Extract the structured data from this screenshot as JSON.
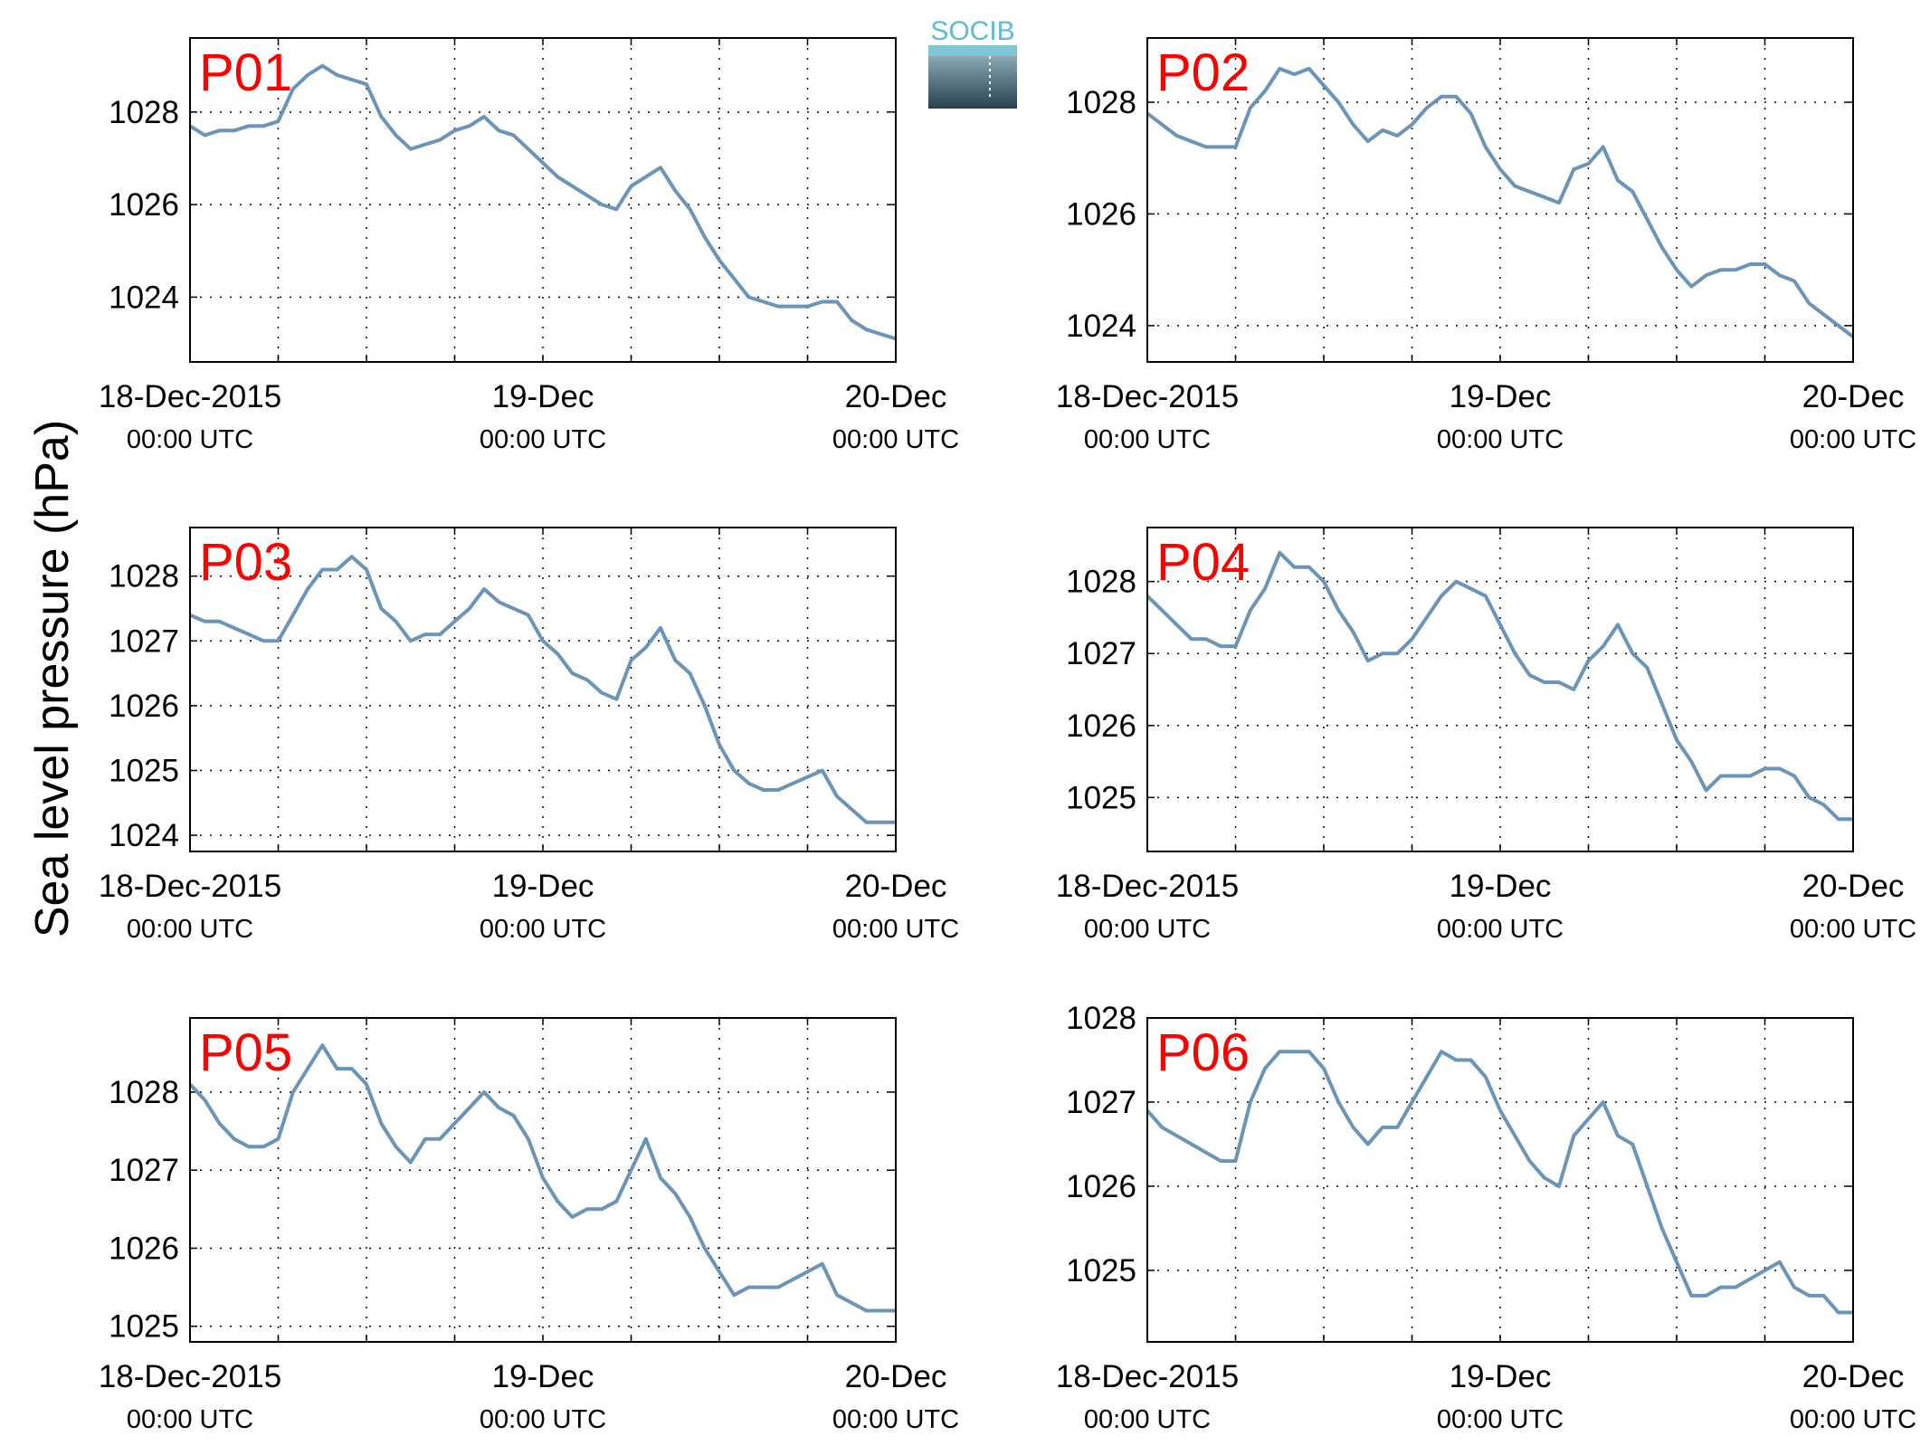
{
  "figure": {
    "ylabel": "Sea level pressure (hPa)",
    "logo_text": "SOCIB",
    "line_color": "#6a94b8",
    "label_color": "#ff0000"
  },
  "chart_data": [
    {
      "type": "line",
      "title": "P01",
      "x_start": "2015-12-18 00:00 UTC",
      "x_end": "2015-12-20 00:00 UTC",
      "x_step_hours": 1,
      "xlim": [
        "2015-12-18 00:00 UTC",
        "2015-12-20 00:00 UTC"
      ],
      "xticks": [
        [
          "18-Dec-2015",
          "00:00 UTC"
        ],
        [
          "19-Dec",
          "00:00 UTC"
        ],
        [
          "20-Dec",
          "00:00 UTC"
        ]
      ],
      "yticks": [
        1024,
        1026,
        1028
      ],
      "ylim": [
        1022.6,
        1029.6
      ],
      "grid": true,
      "series": [
        {
          "values": [
            1027.7,
            1027.5,
            1027.6,
            1027.6,
            1027.7,
            1027.7,
            1027.8,
            1028.5,
            1028.8,
            1029.0,
            1028.8,
            1028.7,
            1028.6,
            1027.9,
            1027.5,
            1027.2,
            1027.3,
            1027.4,
            1027.6,
            1027.7,
            1027.9,
            1027.6,
            1027.5,
            1027.2,
            1026.9,
            1026.6,
            1026.4,
            1026.2,
            1026.0,
            1025.9,
            1026.4,
            1026.6,
            1026.8,
            1026.3,
            1025.9,
            1025.3,
            1024.8,
            1024.4,
            1024.0,
            1023.9,
            1023.8,
            1023.8,
            1023.8,
            1023.9,
            1023.9,
            1023.5,
            1023.3,
            1023.2,
            1023.1
          ]
        }
      ]
    },
    {
      "type": "line",
      "title": "P02",
      "x_start": "2015-12-18 00:00 UTC",
      "x_end": "2015-12-20 00:00 UTC",
      "x_step_hours": 1,
      "xlim": [
        "2015-12-18 00:00 UTC",
        "2015-12-20 00:00 UTC"
      ],
      "xticks": [
        [
          "18-Dec-2015",
          "00:00 UTC"
        ],
        [
          "19-Dec",
          "00:00 UTC"
        ],
        [
          "20-Dec",
          "00:00 UTC"
        ]
      ],
      "yticks": [
        1024,
        1026,
        1028
      ],
      "ylim": [
        1023.35,
        1029.15
      ],
      "grid": true,
      "series": [
        {
          "values": [
            1027.8,
            1027.6,
            1027.4,
            1027.3,
            1027.2,
            1027.2,
            1027.2,
            1027.9,
            1028.2,
            1028.6,
            1028.5,
            1028.6,
            1028.3,
            1028.0,
            1027.6,
            1027.3,
            1027.5,
            1027.4,
            1027.6,
            1027.9,
            1028.1,
            1028.1,
            1027.8,
            1027.2,
            1026.8,
            1026.5,
            1026.4,
            1026.3,
            1026.2,
            1026.8,
            1026.9,
            1027.2,
            1026.6,
            1026.4,
            1025.9,
            1025.4,
            1025.0,
            1024.7,
            1024.9,
            1025.0,
            1025.0,
            1025.1,
            1025.1,
            1024.9,
            1024.8,
            1024.4,
            1024.2,
            1024.0,
            1023.8
          ]
        }
      ]
    },
    {
      "type": "line",
      "title": "P03",
      "x_start": "2015-12-18 00:00 UTC",
      "x_end": "2015-12-20 00:00 UTC",
      "x_step_hours": 1,
      "xlim": [
        "2015-12-18 00:00 UTC",
        "2015-12-20 00:00 UTC"
      ],
      "xticks": [
        [
          "18-Dec-2015",
          "00:00 UTC"
        ],
        [
          "19-Dec",
          "00:00 UTC"
        ],
        [
          "20-Dec",
          "00:00 UTC"
        ]
      ],
      "yticks": [
        1024,
        1025,
        1026,
        1027,
        1028
      ],
      "ylim": [
        1023.75,
        1028.75
      ],
      "grid": true,
      "series": [
        {
          "values": [
            1027.4,
            1027.3,
            1027.3,
            1027.2,
            1027.1,
            1027.0,
            1027.0,
            1027.4,
            1027.8,
            1028.1,
            1028.1,
            1028.3,
            1028.1,
            1027.5,
            1027.3,
            1027.0,
            1027.1,
            1027.1,
            1027.3,
            1027.5,
            1027.8,
            1027.6,
            1027.5,
            1027.4,
            1027.0,
            1026.8,
            1026.5,
            1026.4,
            1026.2,
            1026.1,
            1026.7,
            1026.9,
            1027.2,
            1026.7,
            1026.5,
            1026.0,
            1025.4,
            1025.0,
            1024.8,
            1024.7,
            1024.7,
            1024.8,
            1024.9,
            1025.0,
            1024.6,
            1024.4,
            1024.2,
            1024.2,
            1024.2
          ]
        }
      ]
    },
    {
      "type": "line",
      "title": "P04",
      "x_start": "2015-12-18 00:00 UTC",
      "x_end": "2015-12-20 00:00 UTC",
      "x_step_hours": 1,
      "xlim": [
        "2015-12-18 00:00 UTC",
        "2015-12-20 00:00 UTC"
      ],
      "xticks": [
        [
          "18-Dec-2015",
          "00:00 UTC"
        ],
        [
          "19-Dec",
          "00:00 UTC"
        ],
        [
          "20-Dec",
          "00:00 UTC"
        ]
      ],
      "yticks": [
        1025,
        1026,
        1027,
        1028
      ],
      "ylim": [
        1024.25,
        1028.75
      ],
      "grid": true,
      "series": [
        {
          "values": [
            1027.8,
            1027.6,
            1027.4,
            1027.2,
            1027.2,
            1027.1,
            1027.1,
            1027.6,
            1027.9,
            1028.4,
            1028.2,
            1028.2,
            1028.0,
            1027.6,
            1027.3,
            1026.9,
            1027.0,
            1027.0,
            1027.2,
            1027.5,
            1027.8,
            1028.0,
            1027.9,
            1027.8,
            1027.4,
            1027.0,
            1026.7,
            1026.6,
            1026.6,
            1026.5,
            1026.9,
            1027.1,
            1027.4,
            1027.0,
            1026.8,
            1026.3,
            1025.8,
            1025.5,
            1025.1,
            1025.3,
            1025.3,
            1025.3,
            1025.4,
            1025.4,
            1025.3,
            1025.0,
            1024.9,
            1024.7,
            1024.7
          ]
        }
      ]
    },
    {
      "type": "line",
      "title": "P05",
      "x_start": "2015-12-18 00:00 UTC",
      "x_end": "2015-12-20 00:00 UTC",
      "x_step_hours": 1,
      "xlim": [
        "2015-12-18 00:00 UTC",
        "2015-12-20 00:00 UTC"
      ],
      "xticks": [
        [
          "18-Dec-2015",
          "00:00 UTC"
        ],
        [
          "19-Dec",
          "00:00 UTC"
        ],
        [
          "20-Dec",
          "00:00 UTC"
        ]
      ],
      "yticks": [
        1025,
        1026,
        1027,
        1028
      ],
      "ylim": [
        1024.8,
        1028.95
      ],
      "grid": true,
      "series": [
        {
          "values": [
            1028.1,
            1027.9,
            1027.6,
            1027.4,
            1027.3,
            1027.3,
            1027.4,
            1028.0,
            1028.3,
            1028.6,
            1028.3,
            1028.3,
            1028.1,
            1027.6,
            1027.3,
            1027.1,
            1027.4,
            1027.4,
            1027.6,
            1027.8,
            1028.0,
            1027.8,
            1027.7,
            1027.4,
            1026.9,
            1026.6,
            1026.4,
            1026.5,
            1026.5,
            1026.6,
            1027.0,
            1027.4,
            1026.9,
            1026.7,
            1026.4,
            1026.0,
            1025.7,
            1025.4,
            1025.5,
            1025.5,
            1025.5,
            1025.6,
            1025.7,
            1025.8,
            1025.4,
            1025.3,
            1025.2,
            1025.2,
            1025.2
          ]
        }
      ]
    },
    {
      "type": "line",
      "title": "P06",
      "x_start": "2015-12-18 00:00 UTC",
      "x_end": "2015-12-20 00:00 UTC",
      "x_step_hours": 1,
      "xlim": [
        "2015-12-18 00:00 UTC",
        "2015-12-20 00:00 UTC"
      ],
      "xticks": [
        [
          "18-Dec-2015",
          "00:00 UTC"
        ],
        [
          "19-Dec",
          "00:00 UTC"
        ],
        [
          "20-Dec",
          "00:00 UTC"
        ]
      ],
      "yticks": [
        1025,
        1026,
        1027,
        1028
      ],
      "ylim": [
        1024.15,
        1028.0
      ],
      "grid": true,
      "series": [
        {
          "values": [
            1026.9,
            1026.7,
            1026.6,
            1026.5,
            1026.4,
            1026.3,
            1026.3,
            1027.0,
            1027.4,
            1027.6,
            1027.6,
            1027.6,
            1027.4,
            1027.0,
            1026.7,
            1026.5,
            1026.7,
            1026.7,
            1027.0,
            1027.3,
            1027.6,
            1027.5,
            1027.5,
            1027.3,
            1026.9,
            1026.6,
            1026.3,
            1026.1,
            1026.0,
            1026.6,
            1026.8,
            1027.0,
            1026.6,
            1026.5,
            1026.0,
            1025.5,
            1025.1,
            1024.7,
            1024.7,
            1024.8,
            1024.8,
            1024.9,
            1025.0,
            1025.1,
            1024.8,
            1024.7,
            1024.7,
            1024.5,
            1024.5
          ]
        }
      ]
    }
  ]
}
